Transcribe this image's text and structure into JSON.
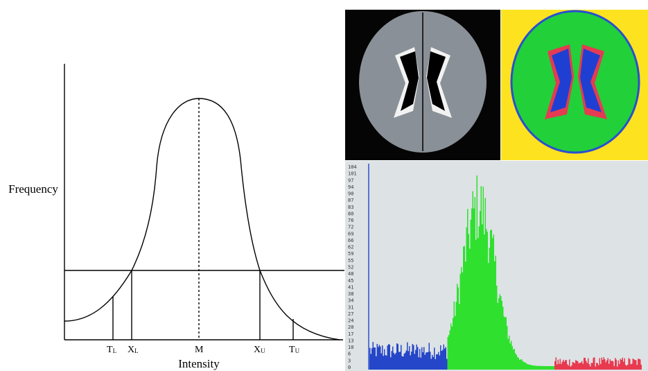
{
  "diagram": {
    "y_axis_label": "Frequency",
    "x_axis_label": "Intensity",
    "markers": [
      {
        "main": "T",
        "sub": "L"
      },
      {
        "main": "X",
        "sub": "L"
      },
      {
        "main": "M"
      },
      {
        "main": "X",
        "sub": "U"
      },
      {
        "main": "T",
        "sub": "U"
      }
    ]
  },
  "histogram": {
    "y_labels": [
      "104",
      "101",
      "97",
      "94",
      "90",
      "87",
      "83",
      "80",
      "76",
      "72",
      "69",
      "66",
      "62",
      "59",
      "55",
      "52",
      "48",
      "45",
      "41",
      "38",
      "34",
      "31",
      "27",
      "24",
      "20",
      "17",
      "13",
      "10",
      "6",
      "3",
      "0"
    ]
  }
}
